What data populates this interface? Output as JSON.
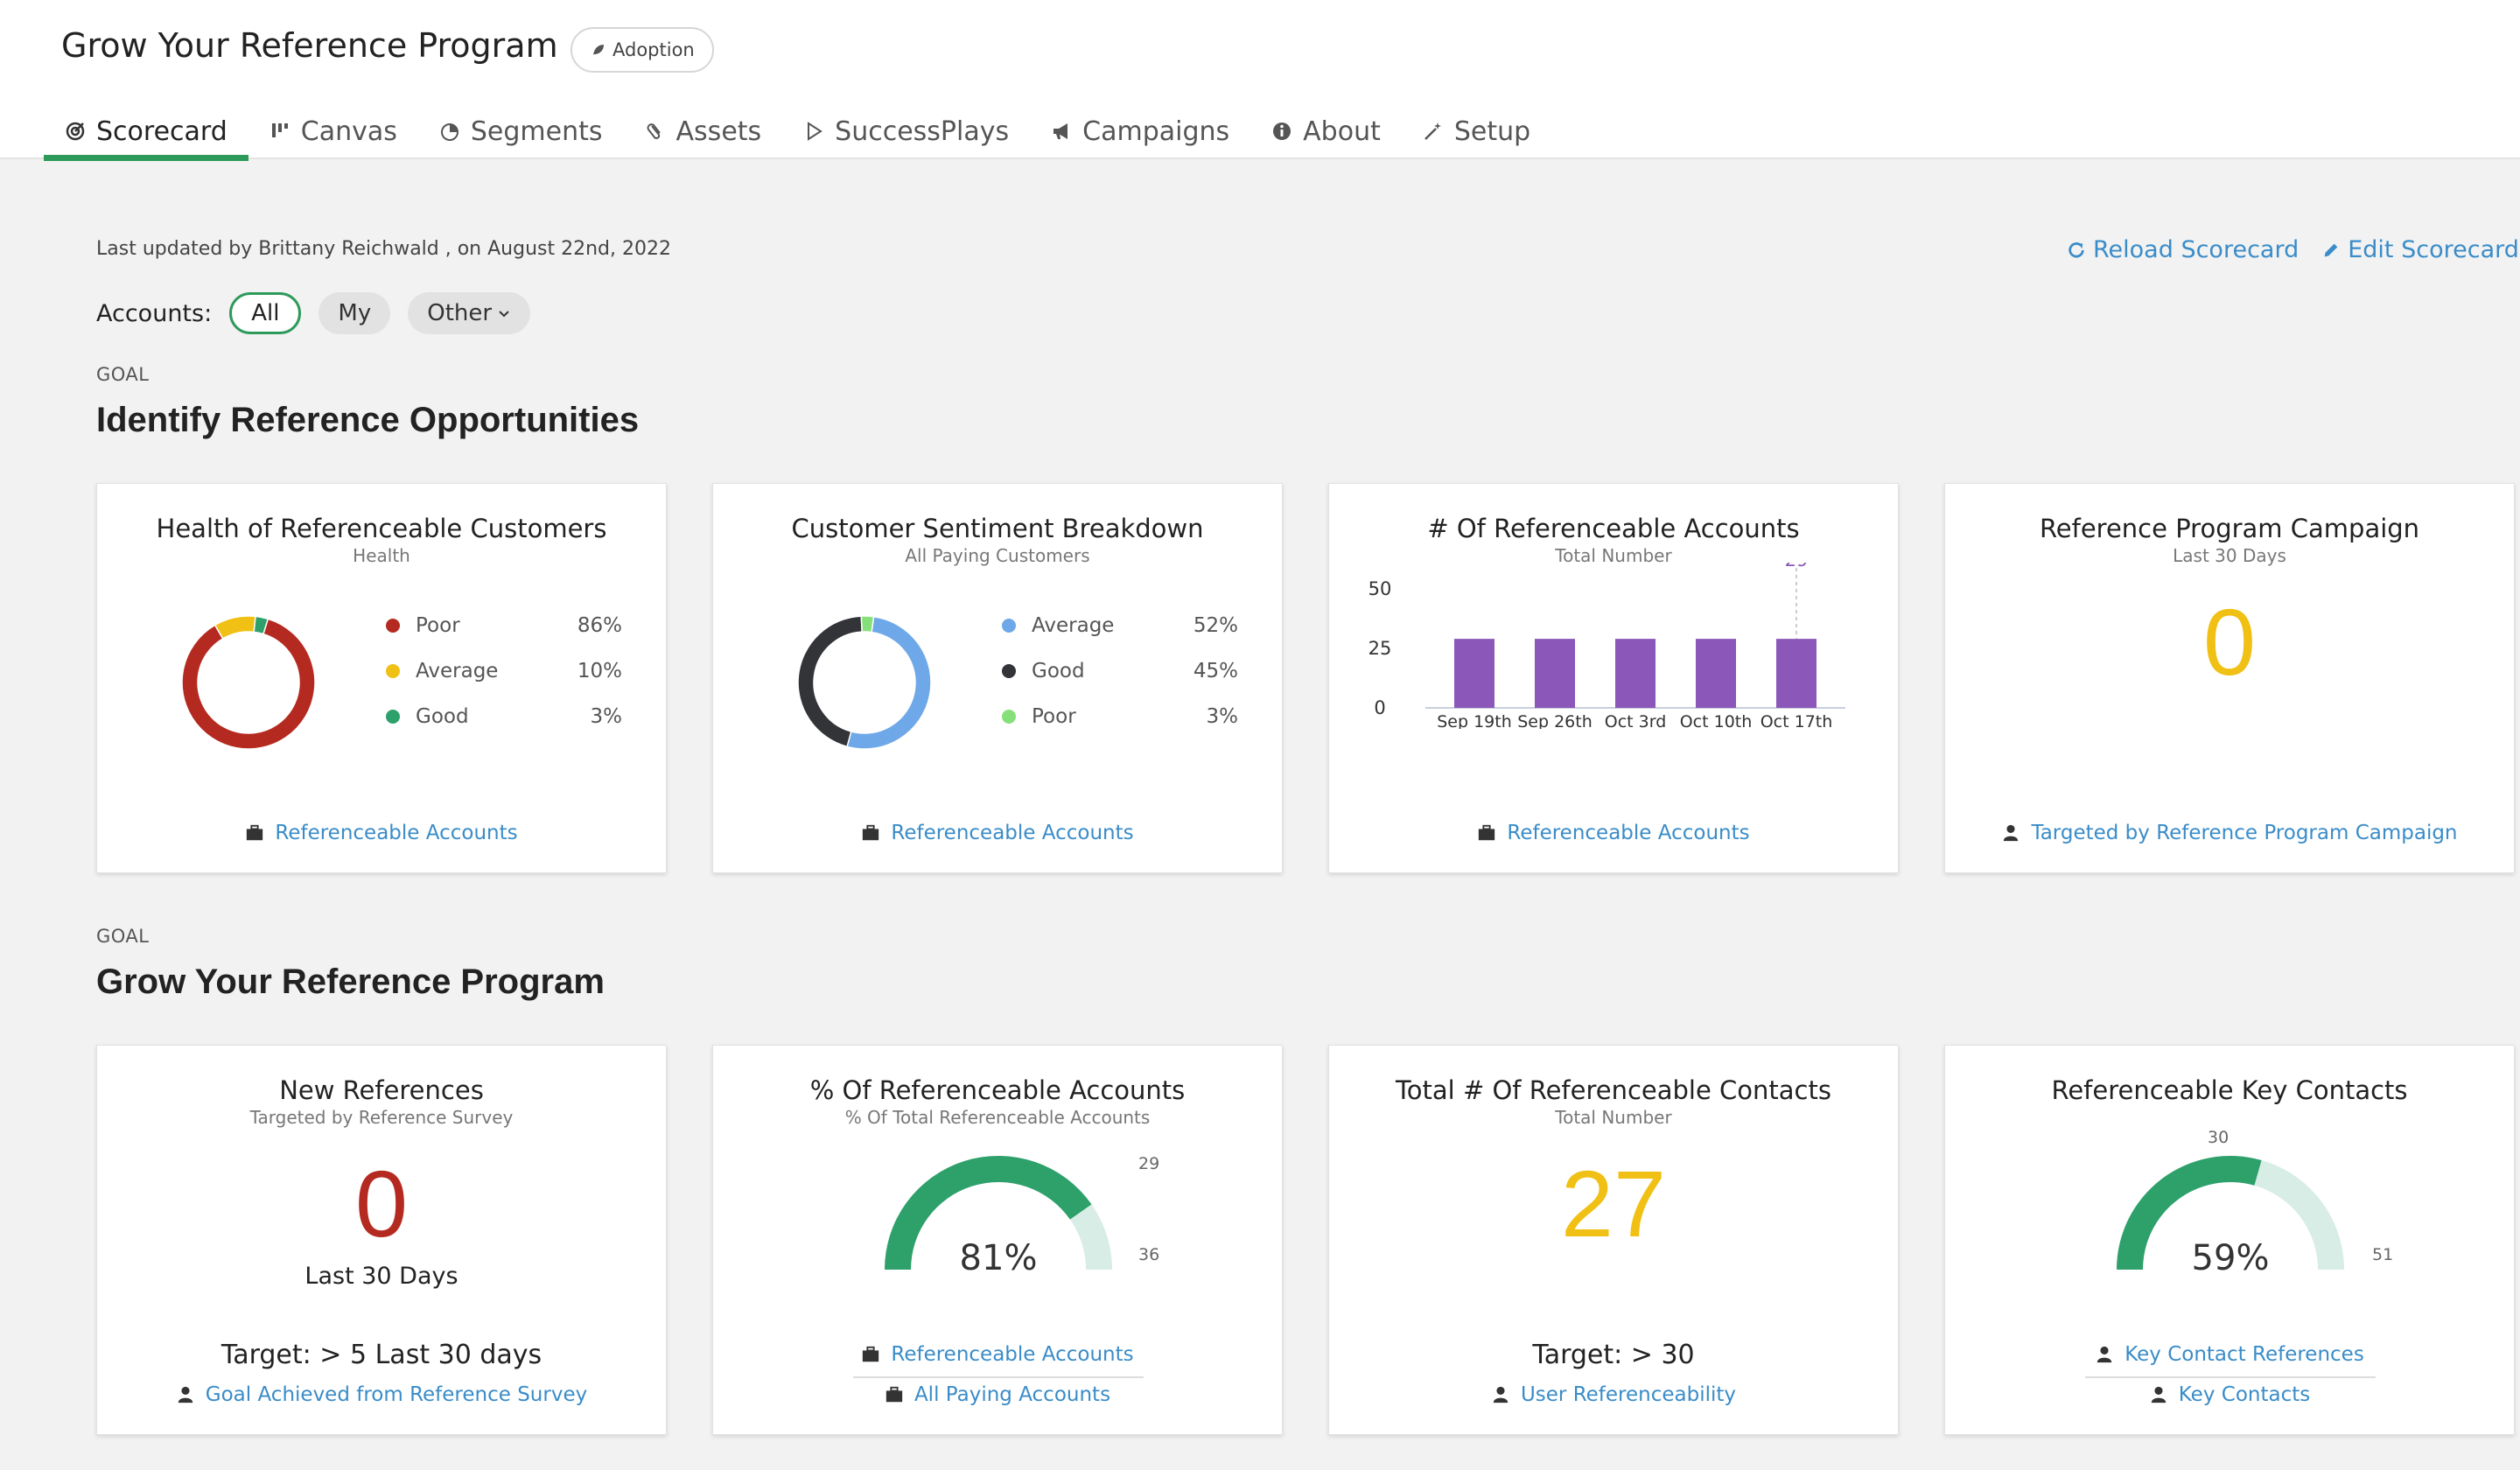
{
  "header": {
    "title": "Grow Your Reference Program",
    "badge": "Adoption"
  },
  "tabs": [
    {
      "label": "Scorecard",
      "icon": "target-icon"
    },
    {
      "label": "Canvas",
      "icon": "kanban-icon"
    },
    {
      "label": "Segments",
      "icon": "pie-icon"
    },
    {
      "label": "Assets",
      "icon": "paperclip-icon"
    },
    {
      "label": "SuccessPlays",
      "icon": "play-icon"
    },
    {
      "label": "Campaigns",
      "icon": "megaphone-icon"
    },
    {
      "label": "About",
      "icon": "info-icon"
    },
    {
      "label": "Setup",
      "icon": "wand-icon"
    }
  ],
  "meta": {
    "updated": "Last updated by Brittany Reichwald , on August 22nd, 2022"
  },
  "actions": {
    "reload": "Reload Scorecard",
    "edit": "Edit Scorecard"
  },
  "filter": {
    "label": "Accounts:",
    "all": "All",
    "my": "My",
    "other": "Other"
  },
  "goal_label": "GOAL",
  "goal1": {
    "title": "Identify Reference Opportunities"
  },
  "goal2": {
    "title": "Grow Your Reference Program"
  },
  "colors": {
    "accent": "#2e9a5a",
    "link": "#3a8cc8",
    "poor": "#b52a20",
    "average": "#f0c014",
    "good": "#2ea06a",
    "bar": "#8b57b8",
    "teal_light": "#d8ede5"
  },
  "cards": {
    "health": {
      "title": "Health of Referenceable Customers",
      "sub": "Health",
      "legend": [
        {
          "name": "Poor",
          "pct": "86%",
          "color": "#b52a20",
          "value": 86
        },
        {
          "name": "Average",
          "pct": "10%",
          "color": "#f0c014",
          "value": 10
        },
        {
          "name": "Good",
          "pct": "3%",
          "color": "#2ea06a",
          "value": 3
        }
      ],
      "link": "Referenceable Accounts"
    },
    "sentiment": {
      "title": "Customer Sentiment Breakdown",
      "sub": "All Paying Customers",
      "legend": [
        {
          "name": "Average",
          "pct": "52%",
          "color": "#6fa8e8",
          "value": 52
        },
        {
          "name": "Good",
          "pct": "45%",
          "color": "#333438",
          "value": 45
        },
        {
          "name": "Poor",
          "pct": "3%",
          "color": "#86e07a",
          "value": 3
        }
      ],
      "link": "Referenceable Accounts"
    },
    "numref": {
      "title": "# Of Referenceable Accounts",
      "sub": "Total Number",
      "link": "Referenceable Accounts"
    },
    "campaign": {
      "title": "Reference Program Campaign",
      "sub": "Last 30 Days",
      "value": "0",
      "link": "Targeted by Reference Program Campaign"
    },
    "newrefs": {
      "title": "New References",
      "sub": "Targeted by Reference Survey",
      "value": "0",
      "period": "Last 30 Days",
      "target": "Target: > 5 Last 30 days",
      "link": "Goal Achieved from Reference Survey"
    },
    "pctref": {
      "title": "% Of Referenceable Accounts",
      "sub": "% Of Total Referenceable Accounts",
      "value": 29,
      "max": 36,
      "value_label": "29",
      "max_label": "36",
      "pct": "81%",
      "link1": "Referenceable Accounts",
      "link2": "All Paying Accounts"
    },
    "contacts": {
      "title": "Total # Of Referenceable Contacts",
      "sub": "Total Number",
      "value": "27",
      "target": "Target: > 30",
      "link": "User Referenceability"
    },
    "keycontacts": {
      "title": "Referenceable Key Contacts",
      "value": 30,
      "max": 51,
      "value_label": "30",
      "max_label": "51",
      "pct": "59%",
      "link1": "Key Contact References",
      "link2": "Key Contacts"
    }
  },
  "chart_data": [
    {
      "type": "pie",
      "title": "Health of Referenceable Customers",
      "subtitle": "Health",
      "labels": [
        "Poor",
        "Average",
        "Good"
      ],
      "values": [
        86,
        10,
        3
      ]
    },
    {
      "type": "pie",
      "title": "Customer Sentiment Breakdown",
      "subtitle": "All Paying Customers",
      "labels": [
        "Average",
        "Good",
        "Poor"
      ],
      "values": [
        52,
        45,
        3
      ]
    },
    {
      "type": "bar",
      "title": "# Of Referenceable Accounts",
      "subtitle": "Total Number",
      "categories": [
        "Sep 19th",
        "Sep 26th",
        "Oct 3rd",
        "Oct 10th",
        "Oct 17th"
      ],
      "values": [
        29,
        29,
        29,
        29,
        29
      ],
      "yticks": [
        "0",
        "25",
        "50"
      ],
      "ylim": [
        0,
        50
      ],
      "annotation": "29",
      "grid": false
    }
  ]
}
